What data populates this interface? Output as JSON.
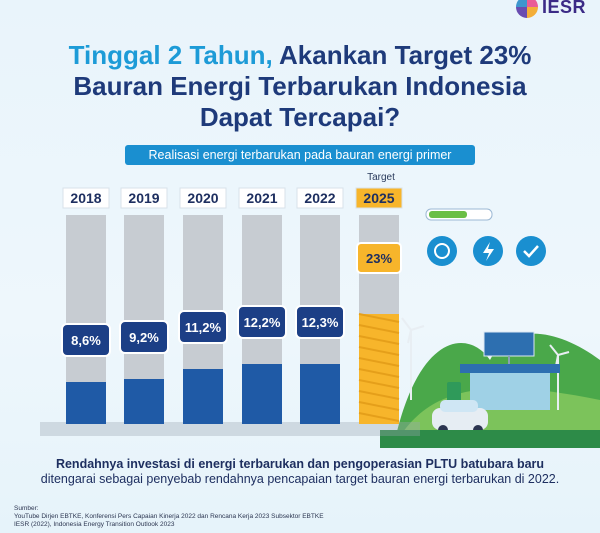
{
  "logo": {
    "text": "IESR"
  },
  "title": {
    "line1_accent": "Tinggal 2 Tahun,",
    "line1_rest": " Akankan Target 23%",
    "line2": "Bauran Energi Terbarukan Indonesia",
    "line3": "Dapat Tercapai?"
  },
  "subtitle": "Realisasi energi terbarukan pada bauran energi primer",
  "target_label": "Target",
  "chart_data": {
    "type": "bar",
    "title": "Realisasi energi terbarukan pada bauran energi primer",
    "categories": [
      "2018",
      "2019",
      "2020",
      "2021",
      "2022",
      "2025"
    ],
    "values": [
      8.6,
      9.2,
      11.2,
      12.2,
      12.3,
      23
    ],
    "value_labels": [
      "8,6%",
      "9,2%",
      "11,2%",
      "12,2%",
      "12,3%",
      "23%"
    ],
    "target_category": "2025",
    "unit": "%",
    "colors": {
      "bar": "#1f5aa6",
      "track": "#c7ccd2",
      "target": "#f7b52b",
      "label_box": "#1c3f86"
    }
  },
  "footer": {
    "bold": "Rendahnya investasi di energi terbarukan dan pengoperasian PLTU batubara baru",
    "rest": "ditengarai sebagai penyebab rendahnya pencapaian target bauran energi terbarukan di 2022."
  },
  "sources": [
    "Sumber:",
    "YouTube Dirjen EBTKE, Konferensi Pers Capaian Kinerja 2022 dan Rencana Kerja 2023 Subsektor EBTKE",
    "IESR (2022), Indonesia Energy Transition Outlook 2023"
  ]
}
